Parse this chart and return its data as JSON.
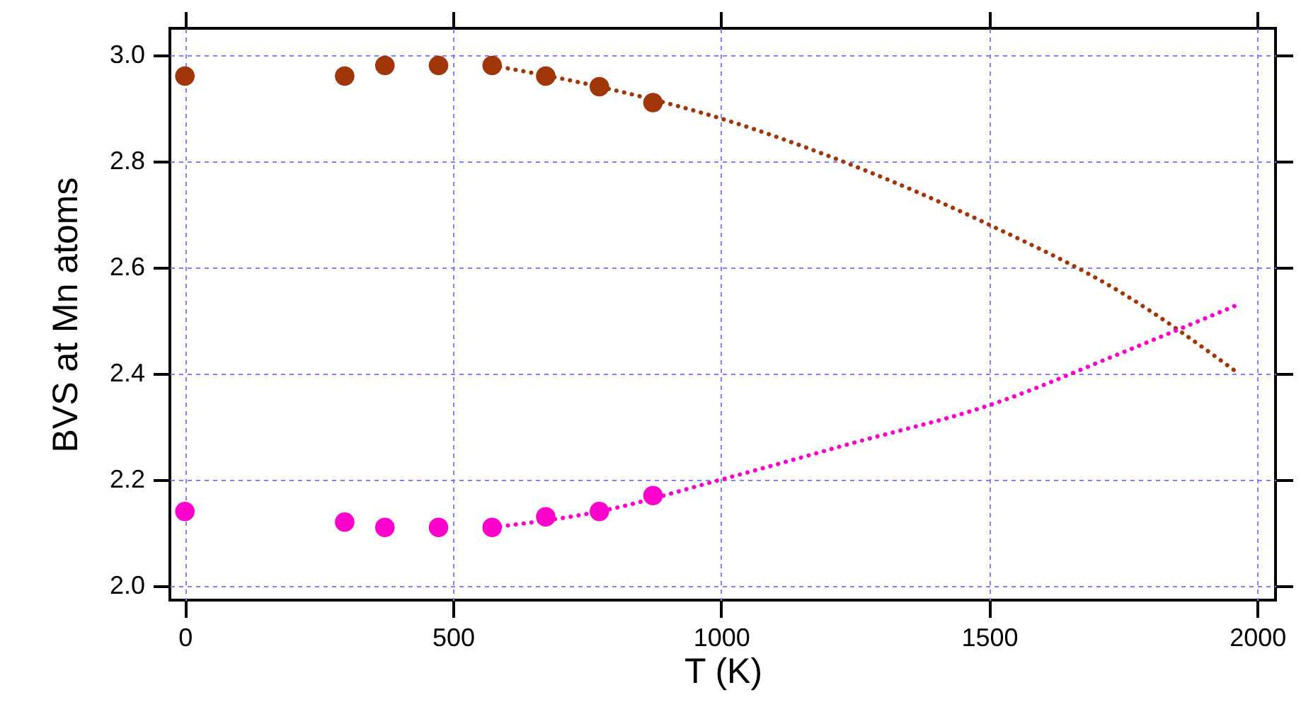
{
  "chart_data": {
    "type": "scatter",
    "xlabel": "T (K)",
    "ylabel": "BVS at Mn atoms",
    "xlim": [
      -28,
      2034
    ],
    "xticks": [
      0,
      500,
      1000,
      1500,
      2000
    ],
    "ylim": [
      1.973,
      3.05
    ],
    "yticks": [
      {
        "value": 2.0,
        "label": "2.0"
      },
      2.2,
      2.4,
      2.6,
      2.8,
      {
        "value": 3.0,
        "label": "3.0"
      }
    ],
    "grid": true,
    "tick_labels": "xy",
    "series": [
      {
        "marker": "circle",
        "color": "#a0360a",
        "x": [
          0,
          298,
          373,
          473,
          573,
          673,
          773,
          873
        ],
        "values": [
          2.96,
          2.96,
          2.98,
          2.98,
          2.98,
          2.96,
          2.94,
          2.91
        ]
      },
      {
        "marker": "circle",
        "color": "#ff00cc",
        "x": [
          0,
          298,
          373,
          473,
          573,
          673,
          773,
          873
        ],
        "values": [
          2.14,
          2.12,
          2.11,
          2.11,
          2.11,
          2.13,
          2.14,
          2.17
        ]
      },
      {
        "type": "line",
        "line_style": "dotted",
        "marker": "none",
        "color": "#a0360a",
        "x": [
          573,
          773,
          1000,
          1250,
          1500,
          1750,
          1965
        ],
        "values": [
          2.98,
          2.94,
          2.88,
          2.79,
          2.68,
          2.55,
          2.4
        ]
      },
      {
        "type": "line",
        "line_style": "dotted",
        "marker": "none",
        "color": "#ff00cc",
        "x": [
          573,
          773,
          1000,
          1250,
          1500,
          1750,
          1965
        ],
        "values": [
          2.11,
          2.14,
          2.2,
          2.27,
          2.34,
          2.44,
          2.53
        ]
      }
    ]
  }
}
